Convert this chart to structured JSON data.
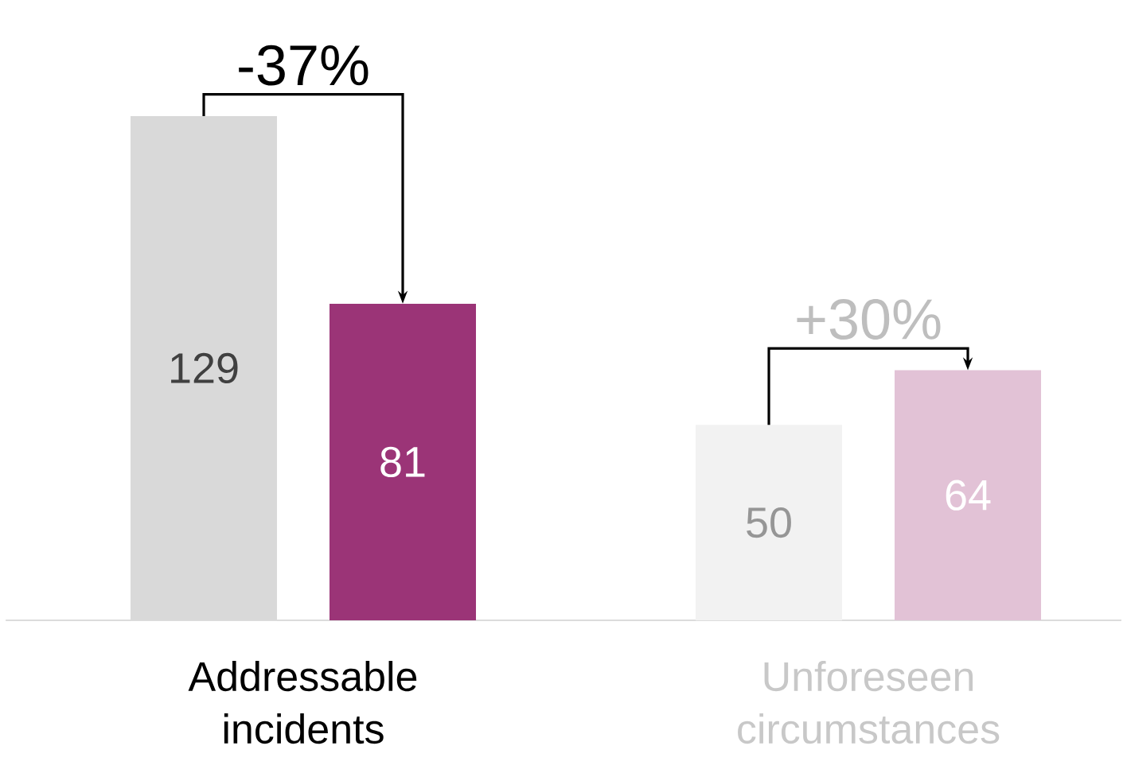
{
  "chart_data": {
    "type": "bar",
    "categories": [
      "Addressable incidents",
      "Unforeseen circumstances"
    ],
    "series": [
      {
        "colors": [
          "#d9d9d9",
          "#f2f2f2"
        ],
        "values": [
          129,
          50
        ]
      },
      {
        "colors": [
          "#9b3477",
          "#e2c2d6"
        ],
        "values": [
          81,
          64
        ]
      }
    ],
    "data_labels": true,
    "annotations": [
      "-37%",
      "+30%"
    ]
  }
}
